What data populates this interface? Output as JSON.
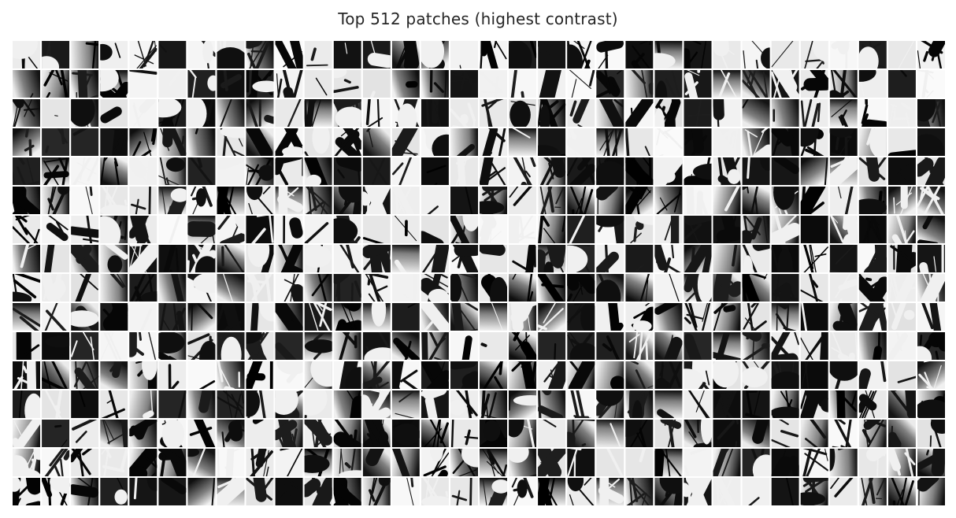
{
  "figure": {
    "title": "Top 512 patches (highest contrast)"
  },
  "patch_grid": {
    "rows": 16,
    "columns": 32,
    "patch_count": 512,
    "colormap": "grayscale",
    "separator_color": "#ffffff"
  }
}
